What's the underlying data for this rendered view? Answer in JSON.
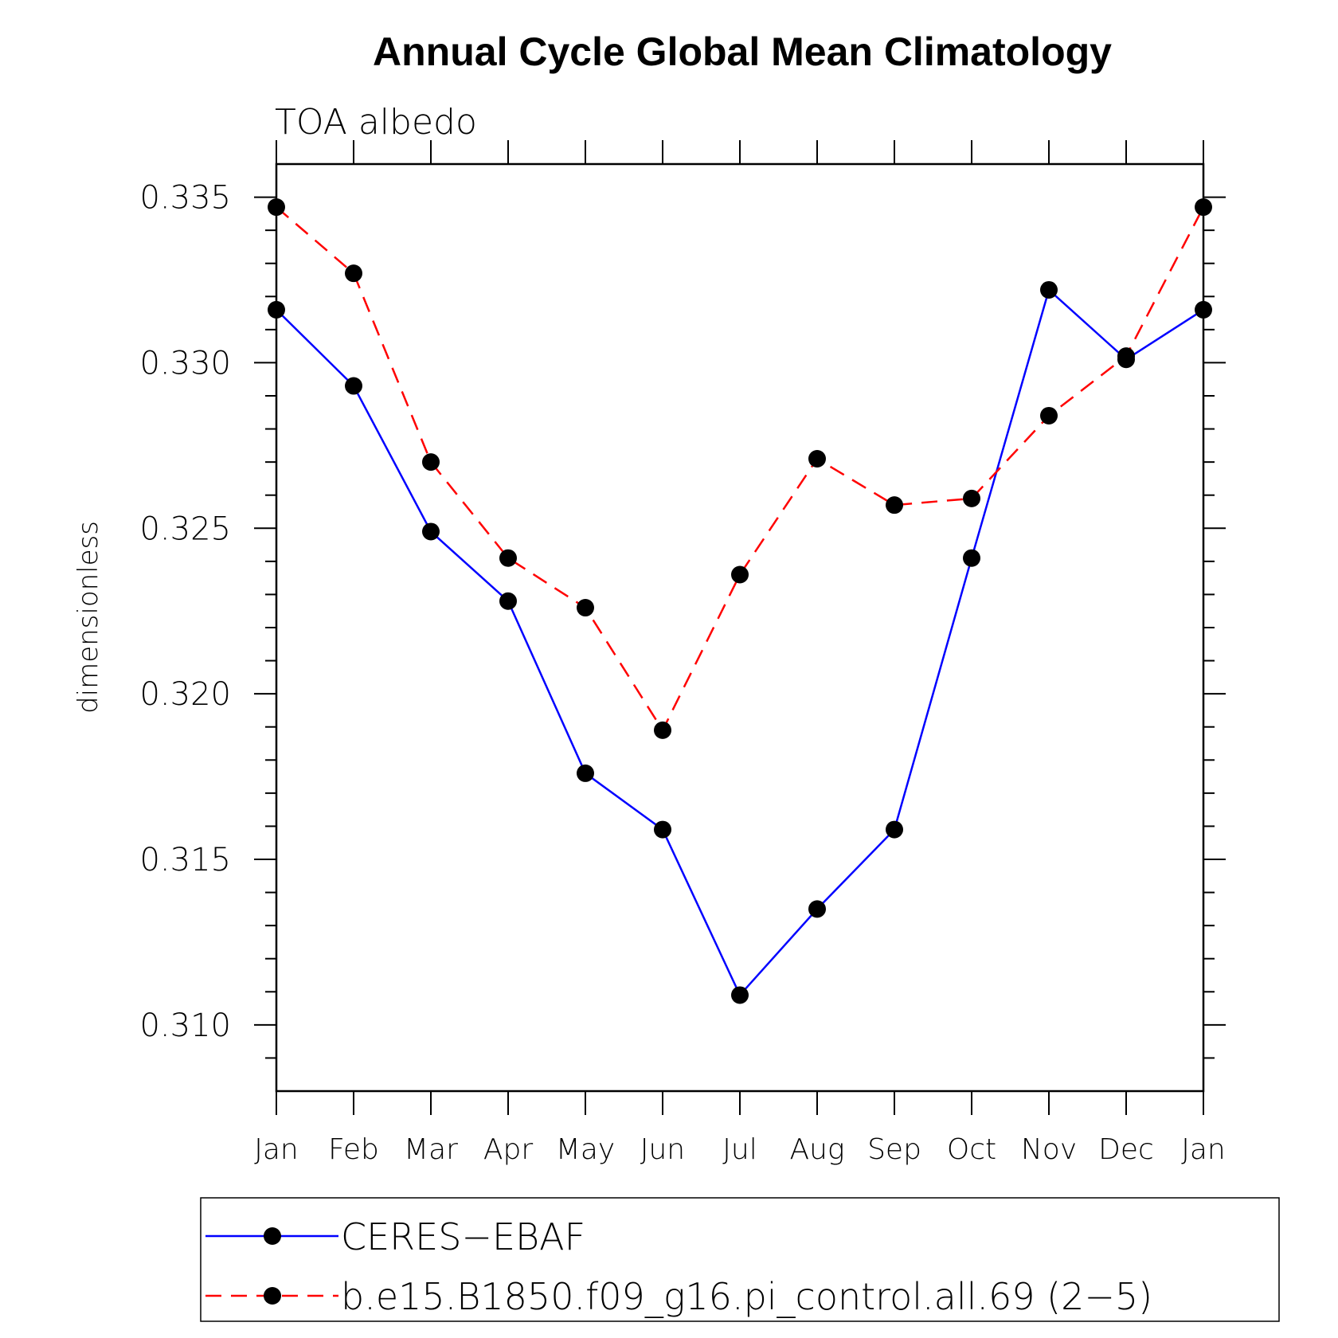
{
  "chart_data": {
    "type": "line",
    "title": "Annual Cycle Global Mean Climatology",
    "subtitle": "TOA  albedo",
    "xlabel": "",
    "ylabel": "dimensionless",
    "categories": [
      "Jan",
      "Feb",
      "Mar",
      "Apr",
      "May",
      "Jun",
      "Jul",
      "Aug",
      "Sep",
      "Oct",
      "Nov",
      "Dec",
      "Jan"
    ],
    "ylim": [
      0.308,
      0.336
    ],
    "yticks": [
      "0.310",
      "0.315",
      "0.320",
      "0.325",
      "0.330",
      "0.335"
    ],
    "ytick_values": [
      0.31,
      0.315,
      0.32,
      0.325,
      0.33,
      0.335
    ],
    "grid": false,
    "legend_position": "bottom",
    "series": [
      {
        "name": "CERES−EBAF",
        "color": "#0000ff",
        "dash": "solid",
        "marker": "filled-circle",
        "values": [
          0.3316,
          0.3293,
          0.3249,
          0.3228,
          0.3176,
          0.3159,
          0.3109,
          0.3135,
          0.3159,
          0.3241,
          0.3322,
          0.3301,
          0.3316
        ]
      },
      {
        "name": "b.e15.B1850.f09_g16.pi_control.all.69 (2−5)",
        "color": "#ff0000",
        "dash": "dashed",
        "marker": "filled-circle",
        "values": [
          0.3347,
          0.3327,
          0.327,
          0.3241,
          0.3226,
          0.3189,
          0.3236,
          0.3271,
          0.3257,
          0.3259,
          0.3284,
          0.3302,
          0.3347
        ]
      }
    ]
  }
}
